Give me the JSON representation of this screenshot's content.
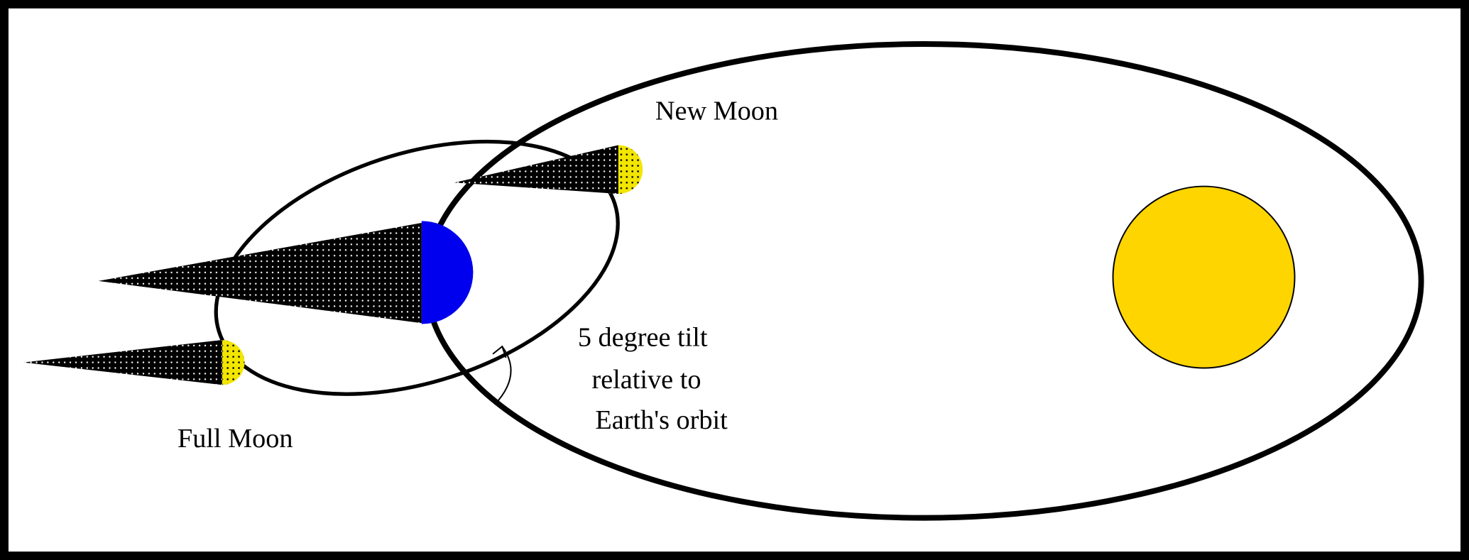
{
  "labels": {
    "new_moon": "New Moon",
    "full_moon": "Full Moon",
    "tilt": [
      "5 degree tilt",
      "relative to",
      "Earth's orbit"
    ]
  }
}
